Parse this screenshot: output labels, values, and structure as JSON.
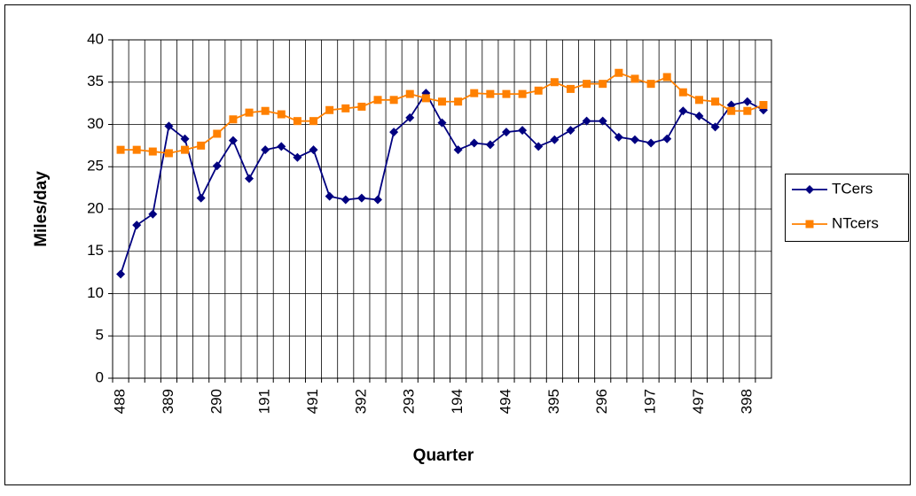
{
  "chart_data": {
    "type": "line",
    "x_label": "Quarter",
    "y_label": "Miles/day",
    "categories": [
      "488",
      null,
      null,
      "389",
      null,
      null,
      "290",
      null,
      null,
      "191",
      null,
      null,
      "491",
      null,
      null,
      "392",
      null,
      null,
      "293",
      null,
      null,
      "194",
      null,
      null,
      "494",
      null,
      null,
      "395",
      null,
      null,
      "296",
      null,
      null,
      "197",
      null,
      null,
      "497",
      null,
      null,
      "398",
      null
    ],
    "series": [
      {
        "name": "TCers",
        "color": "#000080",
        "marker": "diamond",
        "values": [
          12.3,
          18.1,
          19.4,
          29.8,
          28.3,
          21.3,
          25.1,
          28.1,
          23.6,
          27.0,
          27.4,
          26.1,
          27.0,
          21.5,
          21.1,
          21.3,
          21.1,
          29.1,
          30.8,
          33.7,
          30.2,
          27.0,
          27.8,
          27.6,
          29.1,
          29.3,
          27.4,
          28.2,
          29.3,
          30.4,
          30.4,
          28.5,
          28.2,
          27.8,
          28.3,
          31.6,
          31.0,
          29.7,
          32.3,
          32.7,
          31.7
        ]
      },
      {
        "name": "NTcers",
        "color": "#ff8000",
        "marker": "square",
        "values": [
          27.0,
          27.0,
          26.8,
          26.6,
          27.0,
          27.5,
          28.9,
          30.6,
          31.4,
          31.6,
          31.2,
          30.4,
          30.4,
          31.7,
          31.9,
          32.1,
          32.9,
          32.9,
          33.6,
          33.1,
          32.7,
          32.7,
          33.7,
          33.6,
          33.6,
          33.6,
          34.0,
          35.0,
          34.2,
          34.8,
          34.8,
          36.1,
          35.4,
          34.8,
          35.6,
          33.8,
          32.9,
          32.7,
          31.6,
          31.6,
          32.3
        ]
      }
    ],
    "ylim": [
      0,
      40
    ],
    "yticks": [
      0,
      5,
      10,
      15,
      20,
      25,
      30,
      35,
      40
    ],
    "grid": true,
    "legend": "right"
  }
}
